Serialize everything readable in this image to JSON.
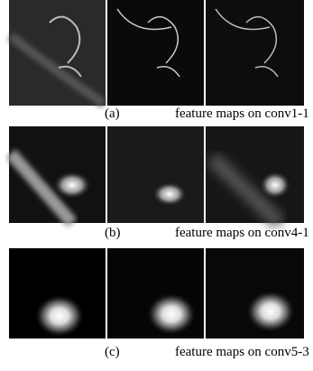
{
  "panels": [
    {
      "label": "(a)",
      "caption": "feature maps on conv1-1"
    },
    {
      "label": "(b)",
      "caption": "feature maps on conv4-1"
    },
    {
      "label": "(c)",
      "caption": "feature maps on conv5-3"
    }
  ]
}
